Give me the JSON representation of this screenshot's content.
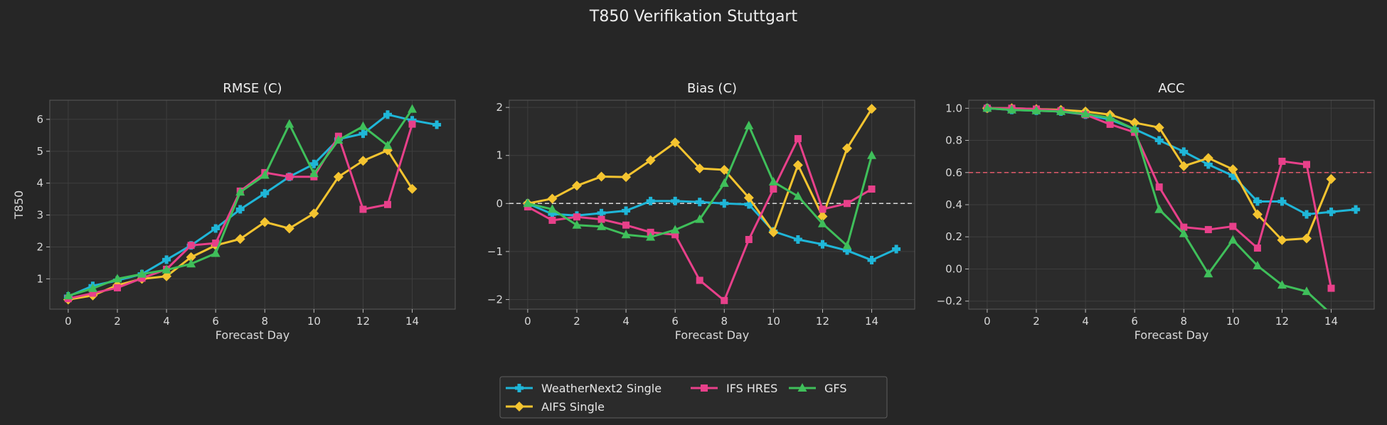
{
  "figure": {
    "title": "T850 Verifikation Stuttgart"
  },
  "legend": {
    "placement": "bottom-center",
    "entries": [
      {
        "name": "WeatherNext2 Single",
        "color": "#1fb6d8",
        "marker": "plus"
      },
      {
        "name": "AIFS Single",
        "color": "#f4c430",
        "marker": "diamond"
      },
      {
        "name": "IFS HRES",
        "color": "#e8408a",
        "marker": "square"
      },
      {
        "name": "GFS",
        "color": "#3fbf5a",
        "marker": "triangle"
      }
    ]
  },
  "chart_data": [
    {
      "type": "line",
      "title": "RMSE (C)",
      "xlabel": "Forecast Day",
      "ylabel": "T850",
      "xlim": [
        -0.75,
        15.75
      ],
      "ylim": [
        0.05,
        6.6
      ],
      "xticks": [
        0,
        2,
        4,
        6,
        8,
        10,
        12,
        14
      ],
      "yticks": [
        1,
        2,
        3,
        4,
        5,
        6
      ],
      "ytick_labels": [
        "1",
        "2",
        "3",
        "4",
        "5",
        "6"
      ],
      "grid": true,
      "series": [
        {
          "name": "WeatherNext2 Single",
          "x": [
            0,
            1,
            2,
            3,
            4,
            5,
            6,
            7,
            8,
            9,
            10,
            11,
            12,
            13,
            14,
            15
          ],
          "values": [
            0.45,
            0.78,
            0.95,
            1.15,
            1.6,
            2.05,
            2.58,
            3.18,
            3.68,
            4.2,
            4.6,
            5.38,
            5.55,
            6.15,
            5.97,
            5.83
          ]
        },
        {
          "name": "AIFS Single",
          "x": [
            0,
            1,
            2,
            3,
            4,
            5,
            6,
            7,
            8,
            9,
            10,
            11,
            12,
            13,
            14
          ],
          "values": [
            0.35,
            0.48,
            0.8,
            1.0,
            1.08,
            1.68,
            2.05,
            2.25,
            2.78,
            2.58,
            3.05,
            4.2,
            4.7,
            5.03,
            3.82
          ]
        },
        {
          "name": "IFS HRES",
          "x": [
            0,
            1,
            2,
            3,
            4,
            5,
            6,
            7,
            8,
            9,
            10,
            11,
            12,
            13,
            14
          ],
          "values": [
            0.38,
            0.55,
            0.72,
            1.02,
            1.3,
            2.05,
            2.12,
            3.75,
            4.33,
            4.2,
            4.2,
            5.47,
            3.18,
            3.33,
            5.85
          ]
        },
        {
          "name": "GFS",
          "x": [
            0,
            1,
            2,
            3,
            4,
            5,
            6,
            7,
            8,
            9,
            10,
            11,
            12,
            13,
            14
          ],
          "values": [
            0.47,
            0.7,
            1.0,
            1.15,
            1.28,
            1.47,
            1.8,
            3.72,
            4.25,
            5.85,
            4.3,
            5.35,
            5.78,
            5.18,
            6.32
          ]
        }
      ]
    },
    {
      "type": "line",
      "title": "Bias (C)",
      "xlabel": "Forecast Day",
      "ylabel": "",
      "xlim": [
        -0.75,
        15.75
      ],
      "ylim": [
        -2.2,
        2.15
      ],
      "xticks": [
        0,
        2,
        4,
        6,
        8,
        10,
        12,
        14
      ],
      "yticks": [
        -2,
        -1,
        0,
        1,
        2
      ],
      "ytick_labels": [
        "−2",
        "−1",
        "0",
        "1",
        "2"
      ],
      "grid": true,
      "reference_line": {
        "y": 0,
        "color": "#d9d9d9",
        "style": "dashed"
      },
      "series": [
        {
          "name": "WeatherNext2 Single",
          "x": [
            0,
            1,
            2,
            3,
            4,
            5,
            6,
            7,
            8,
            9,
            10,
            11,
            12,
            13,
            14,
            15
          ],
          "values": [
            0.0,
            -0.22,
            -0.25,
            -0.2,
            -0.15,
            0.05,
            0.05,
            0.03,
            0.0,
            -0.02,
            -0.58,
            -0.75,
            -0.85,
            -0.98,
            -1.18,
            -0.95
          ]
        },
        {
          "name": "AIFS Single",
          "x": [
            0,
            1,
            2,
            3,
            4,
            5,
            6,
            7,
            8,
            9,
            10,
            11,
            12,
            13,
            14
          ],
          "values": [
            0.0,
            0.1,
            0.37,
            0.56,
            0.55,
            0.9,
            1.27,
            0.73,
            0.7,
            0.12,
            -0.6,
            0.8,
            -0.27,
            1.15,
            1.97
          ]
        },
        {
          "name": "IFS HRES",
          "x": [
            0,
            1,
            2,
            3,
            4,
            5,
            6,
            7,
            8,
            9,
            10,
            11,
            12,
            13,
            14
          ],
          "values": [
            -0.07,
            -0.35,
            -0.28,
            -0.33,
            -0.45,
            -0.6,
            -0.65,
            -1.6,
            -2.02,
            -0.75,
            0.3,
            1.35,
            -0.12,
            0.0,
            0.3
          ]
        },
        {
          "name": "GFS",
          "x": [
            0,
            1,
            2,
            3,
            4,
            5,
            6,
            7,
            8,
            9,
            10,
            11,
            12,
            13,
            14
          ],
          "values": [
            0.0,
            -0.12,
            -0.45,
            -0.48,
            -0.65,
            -0.7,
            -0.55,
            -0.33,
            0.42,
            1.62,
            0.45,
            0.15,
            -0.42,
            -0.88,
            1.0
          ]
        }
      ]
    },
    {
      "type": "line",
      "title": "ACC",
      "xlabel": "Forecast Day",
      "ylabel": "",
      "xlim": [
        -0.75,
        15.75
      ],
      "ylim": [
        -0.25,
        1.05
      ],
      "xticks": [
        0,
        2,
        4,
        6,
        8,
        10,
        12,
        14
      ],
      "yticks": [
        -0.2,
        0.0,
        0.2,
        0.4,
        0.6,
        0.8,
        1.0
      ],
      "ytick_labels": [
        "−0.2",
        "0.0",
        "0.2",
        "0.4",
        "0.6",
        "0.8",
        "1.0"
      ],
      "grid": true,
      "reference_line": {
        "y": 0.6,
        "color": "#e05a6a",
        "style": "dashed"
      },
      "series": [
        {
          "name": "WeatherNext2 Single",
          "x": [
            0,
            1,
            2,
            3,
            4,
            5,
            6,
            7,
            8,
            9,
            10,
            11,
            12,
            13,
            14,
            15
          ],
          "values": [
            1.0,
            0.99,
            0.985,
            0.98,
            0.96,
            0.93,
            0.87,
            0.8,
            0.73,
            0.65,
            0.58,
            0.42,
            0.42,
            0.34,
            0.355,
            0.37
          ]
        },
        {
          "name": "AIFS Single",
          "x": [
            0,
            1,
            2,
            3,
            4,
            5,
            6,
            7,
            8,
            9,
            10,
            11,
            12,
            13,
            14
          ],
          "values": [
            1.0,
            1.0,
            0.995,
            0.99,
            0.98,
            0.96,
            0.91,
            0.88,
            0.64,
            0.69,
            0.62,
            0.34,
            0.18,
            0.19,
            0.56
          ]
        },
        {
          "name": "IFS HRES",
          "x": [
            0,
            1,
            2,
            3,
            4,
            5,
            6,
            7,
            8,
            9,
            10,
            11,
            12,
            13,
            14
          ],
          "values": [
            1.0,
            1.0,
            0.995,
            0.985,
            0.96,
            0.9,
            0.85,
            0.51,
            0.26,
            0.245,
            0.265,
            0.13,
            0.67,
            0.65,
            -0.12
          ]
        },
        {
          "name": "GFS",
          "x": [
            0,
            1,
            2,
            3,
            4,
            5,
            6,
            7,
            8,
            9,
            10,
            11,
            12,
            13,
            14
          ],
          "values": [
            1.0,
            0.99,
            0.985,
            0.98,
            0.965,
            0.94,
            0.87,
            0.37,
            0.22,
            -0.03,
            0.18,
            0.02,
            -0.1,
            -0.14,
            -0.28
          ]
        }
      ]
    }
  ]
}
